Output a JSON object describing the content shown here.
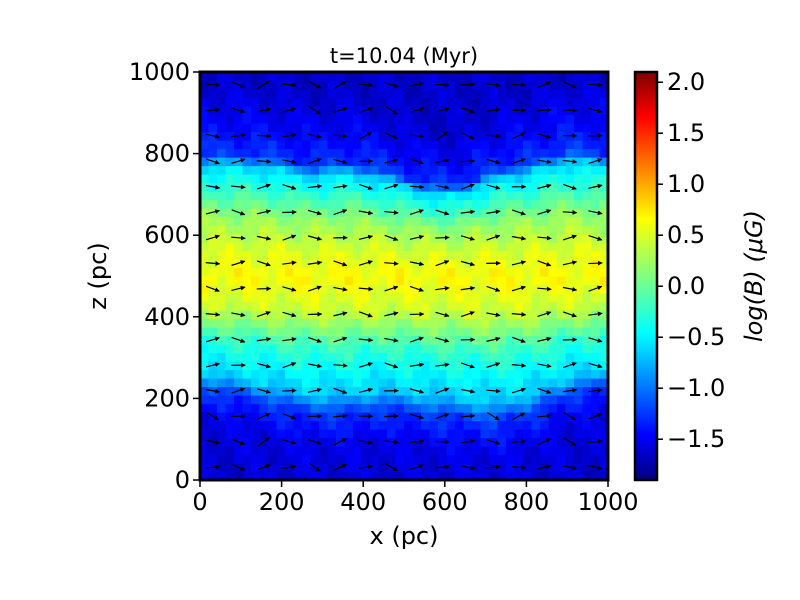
{
  "chart_data": {
    "type": "heatmap",
    "title": "t=10.04 (Myr)",
    "xlabel": "x (pc)",
    "ylabel": "z (pc)",
    "xlim": [
      0,
      1000
    ],
    "ylim": [
      0,
      1000
    ],
    "xticks": [
      0,
      200,
      400,
      600,
      800,
      1000
    ],
    "yticks": [
      0,
      200,
      400,
      600,
      800,
      1000
    ],
    "xtick_labels": [
      "0",
      "200",
      "400",
      "600",
      "800",
      "1000"
    ],
    "ytick_labels": [
      "0",
      "200",
      "400",
      "600",
      "800",
      "1000"
    ],
    "colorbar": {
      "label": "log(B) (μG)",
      "colormap": "jet",
      "range": [
        -1.9,
        2.1
      ],
      "ticks": [
        2.0,
        1.5,
        1.0,
        0.5,
        0.0,
        -0.5,
        -1.0,
        -1.5
      ],
      "tick_labels": [
        "2.0",
        "1.5",
        "1.0",
        "0.5",
        "0.0",
        "−0.5",
        "−1.0",
        "−1.5"
      ]
    },
    "field": {
      "description_values": "log(B) as function of z across x",
      "profile_z": [
        0,
        150,
        220,
        260,
        350,
        430,
        500,
        570,
        650,
        740,
        780,
        810,
        880,
        1000
      ],
      "profile_logB": [
        -1.6,
        -1.5,
        -1.2,
        -0.6,
        -0.2,
        0.4,
        0.6,
        0.45,
        0.2,
        -0.3,
        -0.55,
        -1.2,
        -1.4,
        -1.6
      ],
      "upper_boundary_z": [
        800,
        800,
        790,
        770,
        780,
        760,
        730,
        720,
        760,
        780,
        810,
        800
      ],
      "lower_boundary_z": [
        250,
        240,
        220,
        200,
        200,
        210,
        200,
        190,
        180,
        200,
        240,
        260
      ],
      "boundary_x": [
        0,
        90,
        180,
        270,
        360,
        450,
        540,
        630,
        720,
        810,
        900,
        1000
      ]
    },
    "vectors": {
      "grid_x_step": 62.5,
      "grid_z_step": 62.5,
      "notes": "Magnetic field direction arrows, predominantly along +x"
    }
  },
  "colors": {
    "jet": [
      "#00007f",
      "#0000ff",
      "#007fff",
      "#00ffff",
      "#7fff7f",
      "#ffff00",
      "#ff7f00",
      "#ff0000",
      "#7f0000"
    ]
  }
}
